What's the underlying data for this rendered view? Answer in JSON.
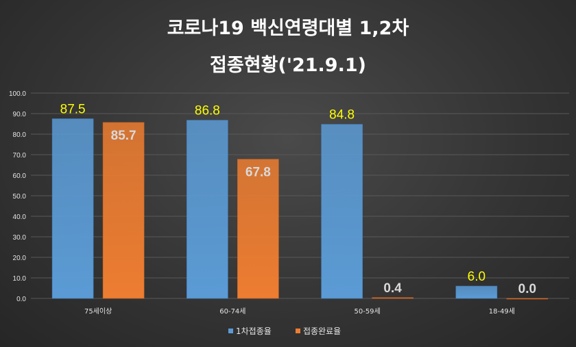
{
  "chart_data": {
    "type": "bar",
    "title_lines": [
      "코로나19 백신연령대별 1,2차",
      "접종현황('21.9.1)"
    ],
    "categories": [
      "75세이상",
      "60-74세",
      "50-59세",
      "18-49세"
    ],
    "series": [
      {
        "name": "1차접종율",
        "values": [
          87.5,
          86.8,
          84.8,
          6.0
        ],
        "labels": [
          "87.5",
          "86.8",
          "84.8",
          "6.0"
        ],
        "color": "#5b9bd5"
      },
      {
        "name": "접종완료율",
        "values": [
          85.7,
          67.8,
          0.4,
          0.0
        ],
        "labels": [
          "85.7",
          "67.8",
          "0.4",
          "0.0"
        ],
        "color": "#ed7d31"
      }
    ],
    "ylim": [
      0,
      100
    ],
    "yticks": [
      0,
      10,
      20,
      30,
      40,
      50,
      60,
      70,
      80,
      90,
      100
    ],
    "ytick_labels": [
      "0.0",
      "10.0",
      "20.0",
      "30.0",
      "40.0",
      "50.0",
      "60.0",
      "70.0",
      "80.0",
      "90.0",
      "100.0"
    ],
    "grid": true,
    "legend_position": "bottom"
  }
}
